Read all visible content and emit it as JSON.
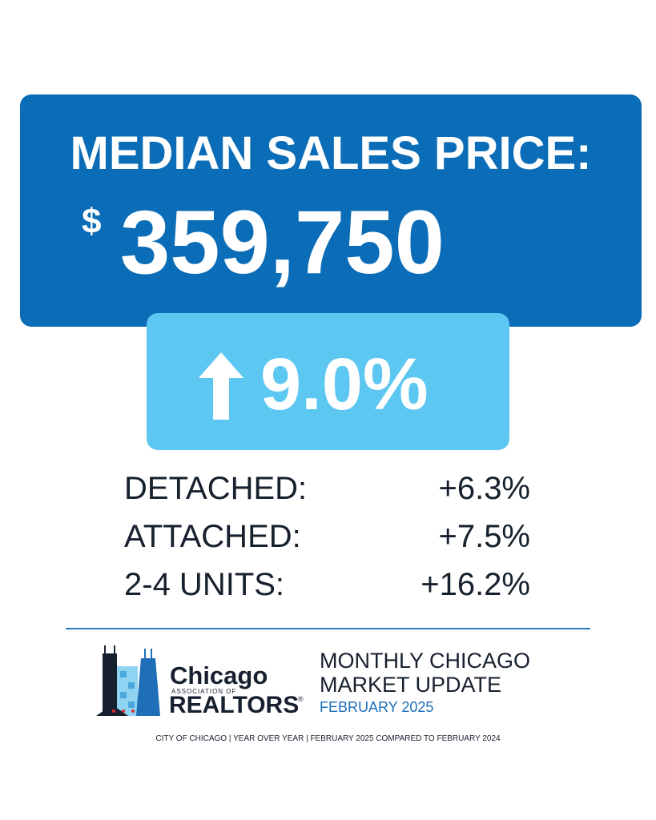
{
  "headline": {
    "title": "MEDIAN SALES PRICE:",
    "currency": "$",
    "price": "359,750"
  },
  "change": {
    "value": "9.0%"
  },
  "breakdown": [
    {
      "label": "DETACHED:",
      "value": "+6.3%"
    },
    {
      "label": "ATTACHED:",
      "value": "+7.5%"
    },
    {
      "label": "2-4 UNITS:",
      "value": "+16.2%"
    }
  ],
  "logo": {
    "name": "Chicago",
    "association": "ASSOCIATION OF",
    "org": "REALTORS",
    "mark": "®"
  },
  "report": {
    "line1": "MONTHLY CHICAGO",
    "line2": "MARKET UPDATE",
    "date": "FEBRUARY 2025"
  },
  "footer": "CITY OF CHICAGO | YEAR OVER YEAR | FEBRUARY 2025 COMPARED TO FEBRUARY 2024"
}
